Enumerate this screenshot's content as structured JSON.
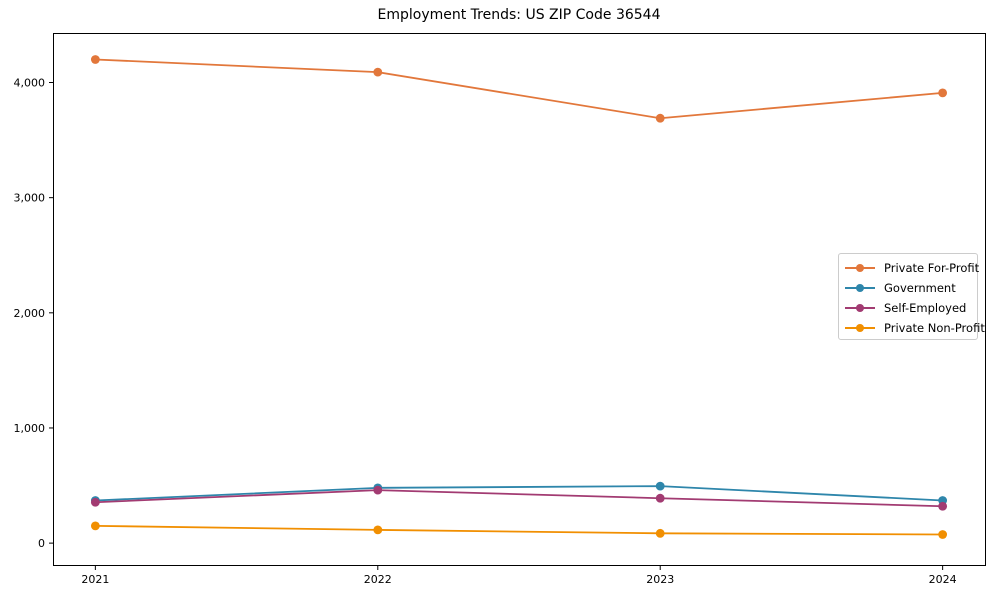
{
  "title": "Employment Trends: US ZIP Code 36544",
  "chart_data": {
    "type": "line",
    "title": "Employment Trends: US ZIP Code 36544",
    "xlabel": "",
    "ylabel": "",
    "x": [
      2021,
      2022,
      2023,
      2024
    ],
    "x_tick_labels": [
      "2021",
      "2022",
      "2023",
      "2024"
    ],
    "y_tick_values": [
      0,
      1000,
      2000,
      3000,
      4000
    ],
    "y_tick_labels": [
      "0",
      "1,000",
      "2,000",
      "3,000",
      "4,000"
    ],
    "xlim": [
      2020.85,
      2024.15
    ],
    "ylim": [
      -190,
      4430
    ],
    "grid": false,
    "legend_position": "center-right",
    "marker": "circle",
    "series": [
      {
        "name": "Private For-Profit",
        "color": "#e2773b",
        "values": [
          4200,
          4090,
          3690,
          3910
        ]
      },
      {
        "name": "Government",
        "color": "#2e86ab",
        "values": [
          370,
          480,
          495,
          370
        ]
      },
      {
        "name": "Self-Employed",
        "color": "#a23b72",
        "values": [
          355,
          460,
          390,
          320
        ]
      },
      {
        "name": "Private Non-Profit",
        "color": "#f18f01",
        "values": [
          150,
          115,
          85,
          75
        ]
      }
    ],
    "axis_color": "#000000",
    "background_color": "#ffffff"
  }
}
